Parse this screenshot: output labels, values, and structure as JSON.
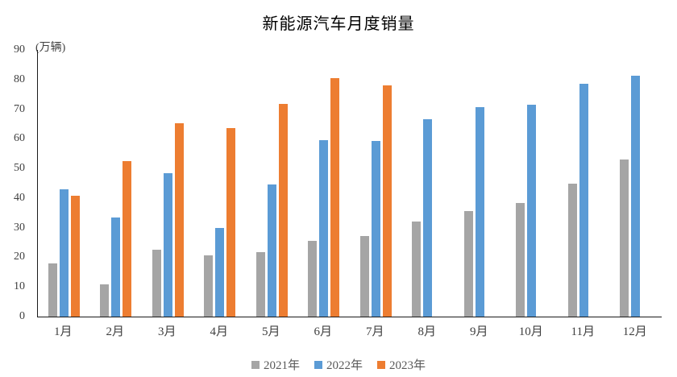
{
  "chart_data": {
    "type": "bar",
    "title": "新能源汽车月度销量",
    "unit_label": "(万辆)",
    "categories": [
      "1月",
      "2月",
      "3月",
      "4月",
      "5月",
      "6月",
      "7月",
      "8月",
      "9月",
      "10月",
      "11月",
      "12月"
    ],
    "series": [
      {
        "name": "2021年",
        "color": "#A5A5A5",
        "values": [
          17.9,
          11.0,
          22.6,
          20.6,
          21.7,
          25.6,
          27.1,
          32.1,
          35.7,
          38.3,
          45.0,
          53.1
        ]
      },
      {
        "name": "2022年",
        "color": "#5B9BD5",
        "values": [
          43.1,
          33.4,
          48.4,
          29.9,
          44.7,
          59.6,
          59.3,
          66.6,
          70.8,
          71.4,
          78.6,
          81.4
        ]
      },
      {
        "name": "2023年",
        "color": "#ED7D31",
        "values": [
          40.8,
          52.5,
          65.3,
          63.6,
          71.7,
          80.6,
          78.0,
          null,
          null,
          null,
          null,
          null
        ]
      }
    ],
    "y_axis": {
      "min": 0,
      "max": 90,
      "step": 10,
      "tick_labels": [
        "0",
        "10",
        "20",
        "30",
        "40",
        "50",
        "60",
        "70",
        "80",
        "90"
      ]
    },
    "legend_position": "bottom",
    "grid": false,
    "axis_color": "#1a1a1a"
  }
}
